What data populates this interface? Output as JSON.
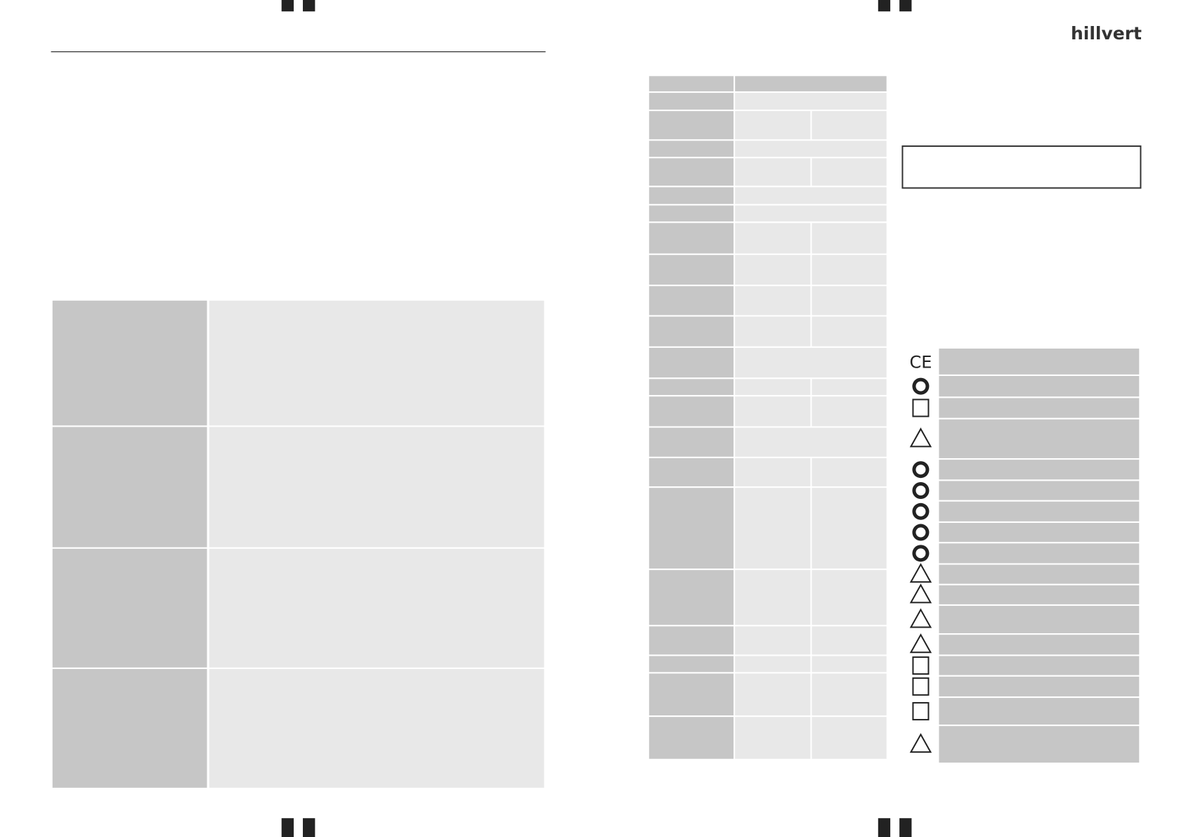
{
  "header": {
    "logo": "hillvert"
  }
}
